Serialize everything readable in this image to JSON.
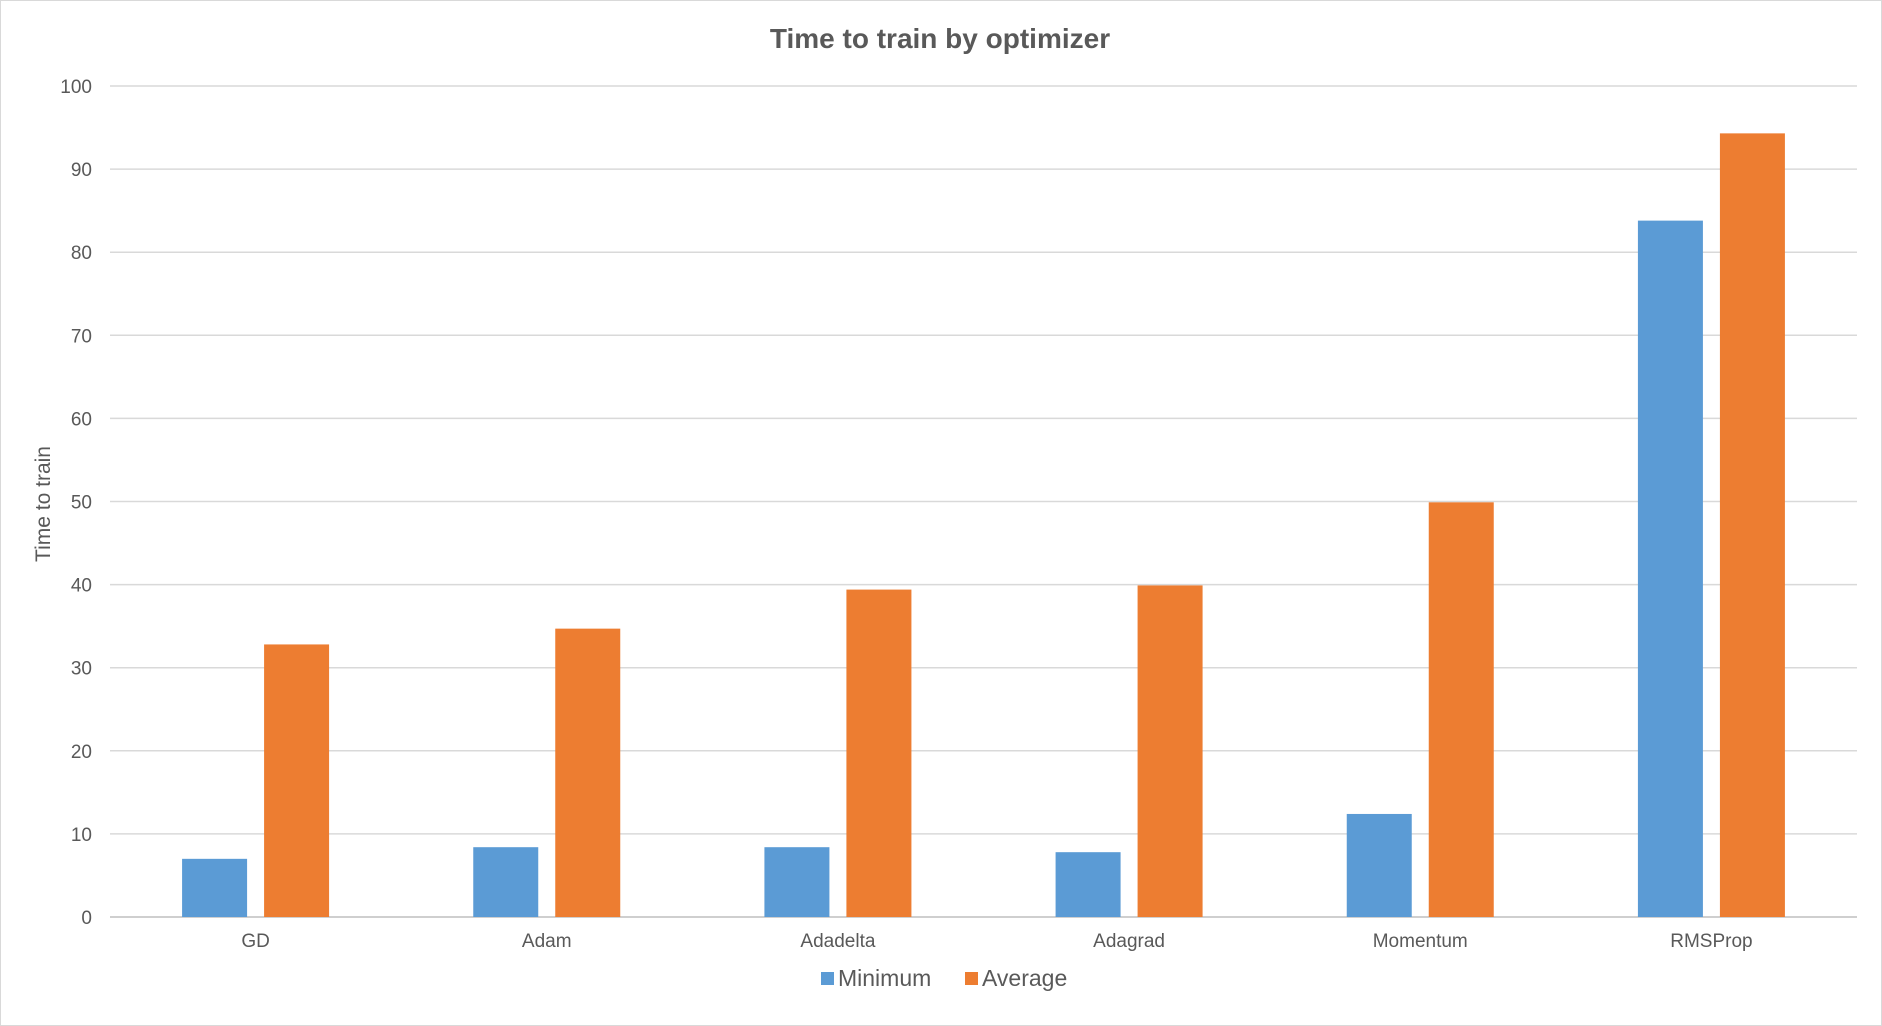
{
  "chart_data": {
    "type": "bar",
    "title": "Time to train by optimizer",
    "xlabel": "",
    "ylabel": "Time to train",
    "categories": [
      "GD",
      "Adam",
      "Adadelta",
      "Adagrad",
      "Momentum",
      "RMSProp"
    ],
    "series": [
      {
        "name": "Minimum",
        "color": "#5b9bd5",
        "values": [
          7.0,
          8.4,
          8.4,
          7.8,
          12.4,
          83.8
        ]
      },
      {
        "name": "Average",
        "color": "#ed7d31",
        "values": [
          32.8,
          34.7,
          39.4,
          39.9,
          49.9,
          94.3
        ]
      }
    ],
    "ylim": [
      0,
      100
    ],
    "yticks": [
      "0",
      "10",
      "20",
      "30",
      "40",
      "50",
      "60",
      "70",
      "80",
      "90",
      "100"
    ],
    "grid": true,
    "legend_position": "bottom"
  }
}
